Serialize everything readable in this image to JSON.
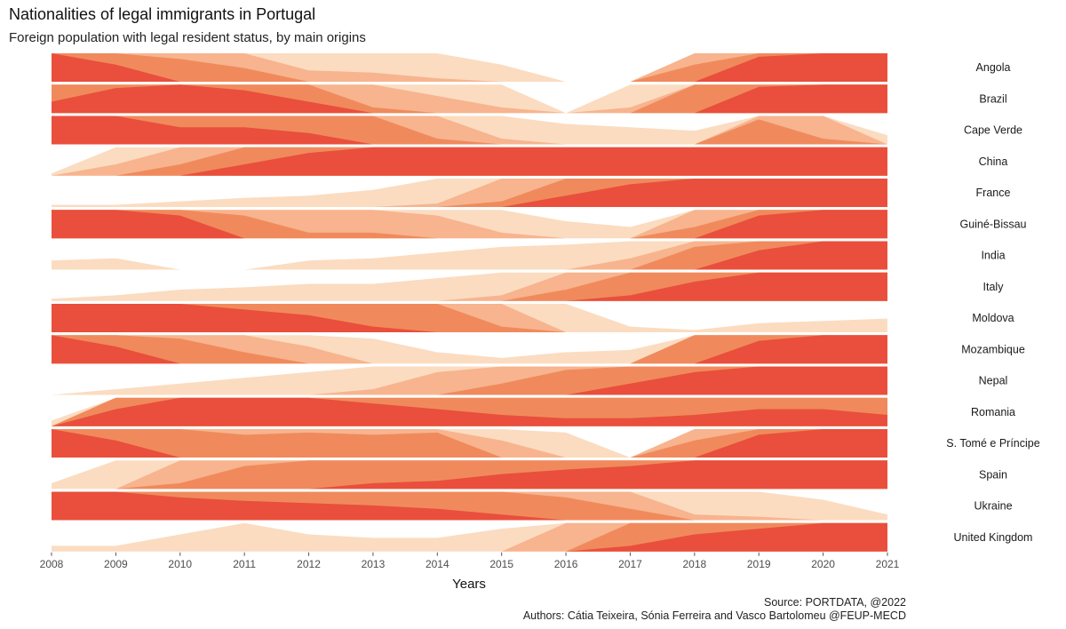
{
  "chart_data": {
    "type": "area",
    "title": "Nationalities of legal immigrants in Portugal",
    "subtitle": "Foreign population with legal resident status, by main origins",
    "xlabel": "Years",
    "x": [
      2008,
      2009,
      2010,
      2011,
      2012,
      2013,
      2014,
      2015,
      2016,
      2017,
      2018,
      2019,
      2020,
      2021
    ],
    "xlim": [
      2008,
      2021
    ],
    "bands": 4,
    "band_colors": [
      "#fbdcc1",
      "#f7b48e",
      "#f08a5c",
      "#e94f3c"
    ],
    "series": [
      {
        "name": "Angola",
        "values": [
          1.0,
          0.9,
          0.7,
          0.62,
          0.35,
          0.33,
          0.28,
          0.15,
          0.0,
          0.0,
          0.65,
          0.97,
          1.0,
          1.0
        ]
      },
      {
        "name": "Brazil",
        "values": [
          0.85,
          0.97,
          1.0,
          0.95,
          0.85,
          0.55,
          0.4,
          0.3,
          0.0,
          0.3,
          0.75,
          0.98,
          1.0,
          1.0
        ]
      },
      {
        "name": "Cape Verde",
        "values": [
          1.0,
          1.0,
          0.9,
          0.9,
          0.85,
          0.75,
          0.55,
          0.3,
          0.18,
          0.15,
          0.12,
          0.72,
          0.55,
          0.08
        ]
      },
      {
        "name": "China",
        "values": [
          0.02,
          0.35,
          0.6,
          0.85,
          0.95,
          1.0,
          1.0,
          1.0,
          1.0,
          1.0,
          1.0,
          1.0,
          1.0,
          1.0
        ]
      },
      {
        "name": "France",
        "values": [
          0.02,
          0.02,
          0.05,
          0.08,
          0.1,
          0.15,
          0.28,
          0.55,
          0.85,
          0.95,
          1.0,
          1.0,
          1.0,
          1.0
        ]
      },
      {
        "name": "Guiné-Bissau",
        "values": [
          1.0,
          1.0,
          0.95,
          0.7,
          0.55,
          0.55,
          0.45,
          0.3,
          0.15,
          0.1,
          0.6,
          0.95,
          1.0,
          1.0
        ]
      },
      {
        "name": "India",
        "values": [
          0.08,
          0.1,
          0.0,
          0.0,
          0.08,
          0.1,
          0.15,
          0.2,
          0.22,
          0.35,
          0.7,
          0.92,
          1.0,
          1.0
        ]
      },
      {
        "name": "Italy",
        "values": [
          0.02,
          0.05,
          0.1,
          0.12,
          0.15,
          0.15,
          0.2,
          0.3,
          0.6,
          0.8,
          0.92,
          1.0,
          1.0,
          1.0
        ]
      },
      {
        "name": "Moldova",
        "values": [
          1.0,
          1.0,
          1.0,
          0.95,
          0.9,
          0.8,
          0.75,
          0.55,
          0.25,
          0.05,
          0.02,
          0.08,
          0.1,
          0.12
        ]
      },
      {
        "name": "Mozambique",
        "values": [
          1.0,
          0.9,
          0.72,
          0.6,
          0.4,
          0.22,
          0.1,
          0.05,
          0.1,
          0.12,
          0.75,
          0.95,
          1.0,
          1.0
        ]
      },
      {
        "name": "Nepal",
        "values": [
          0.0,
          0.05,
          0.1,
          0.15,
          0.2,
          0.3,
          0.45,
          0.6,
          0.72,
          0.85,
          0.95,
          1.0,
          1.0,
          1.0
        ]
      },
      {
        "name": "Romania",
        "values": [
          0.05,
          0.9,
          1.0,
          1.0,
          1.0,
          0.95,
          0.9,
          0.85,
          0.82,
          0.82,
          0.85,
          0.9,
          0.9,
          0.85
        ]
      },
      {
        "name": "S. Tomé e Príncipe",
        "values": [
          1.0,
          0.9,
          0.75,
          0.7,
          0.72,
          0.7,
          0.72,
          0.4,
          0.22,
          0.0,
          0.65,
          0.95,
          1.0,
          1.0
        ]
      },
      {
        "name": "Spain",
        "values": [
          0.05,
          0.25,
          0.55,
          0.7,
          0.75,
          0.8,
          0.82,
          0.88,
          0.92,
          0.95,
          1.0,
          1.0,
          1.0,
          1.0
        ]
      },
      {
        "name": "Ukraine",
        "values": [
          1.0,
          1.0,
          0.95,
          0.92,
          0.9,
          0.88,
          0.85,
          0.8,
          0.7,
          0.6,
          0.3,
          0.28,
          0.18,
          0.05
        ]
      },
      {
        "name": "United Kingdom",
        "values": [
          0.05,
          0.05,
          0.15,
          0.25,
          0.15,
          0.12,
          0.12,
          0.2,
          0.5,
          0.8,
          0.9,
          0.95,
          1.0,
          1.0
        ]
      }
    ],
    "grid": false,
    "legend": "none"
  },
  "source": "Source: PORTDATA, @2022",
  "authors": "Authors: Cátia Teixeira, Sónia Ferreira and Vasco Bartolomeu @FEUP-MECD"
}
